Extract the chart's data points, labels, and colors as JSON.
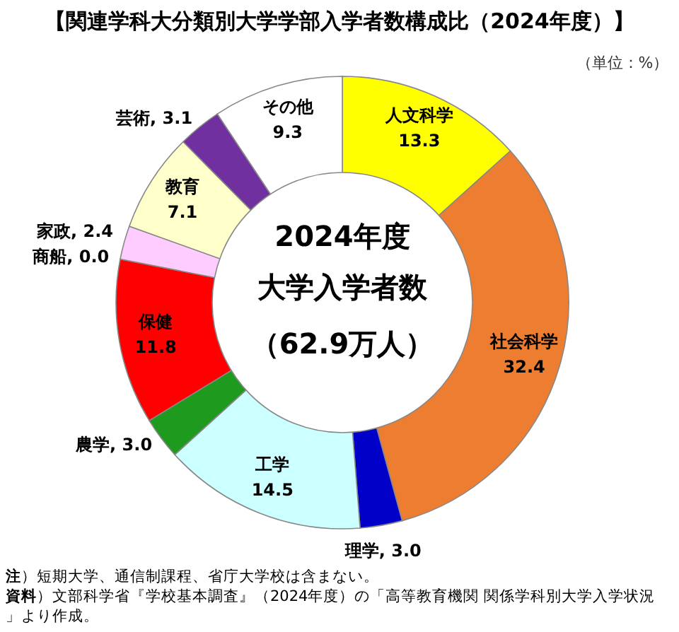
{
  "chart_data": {
    "type": "donut",
    "title": "【関連学科大分類別大学学部入学者数構成比（2024年度）】",
    "subtitle": "（単位：%）",
    "categories": [
      "人文科学",
      "社会科学",
      "理学",
      "工学",
      "農学",
      "保健",
      "商船",
      "家政",
      "教育",
      "芸術",
      "その他"
    ],
    "values": [
      13.3,
      32.4,
      3.0,
      14.5,
      3.0,
      11.8,
      0.0,
      2.4,
      7.1,
      3.1,
      9.3
    ],
    "colors": [
      "#ffff00",
      "#ed7d31",
      "#0000c8",
      "#ccffff",
      "#1e9b1e",
      "#ff0000",
      null,
      "#ffccff",
      "#ffffcc",
      "#7030a0",
      "#ffffff"
    ],
    "value_labels": [
      "13.3",
      "32.4",
      ", 3.0",
      "14.5",
      ", 3.0",
      "11.8",
      ", 0.0",
      ", 2.4",
      "7.1",
      ", 3.1",
      "9.3"
    ],
    "annotations": [
      "2024年度",
      "大学入学者数",
      "（62.9万人）",
      "**注**）短期大学、通信制課程、省庁大学校は含まない。",
      "**資料**）文部科学省『学校基本調査』（2024年度）の「高等教育機関 関係学科別大学入学状況」より作成。"
    ]
  }
}
